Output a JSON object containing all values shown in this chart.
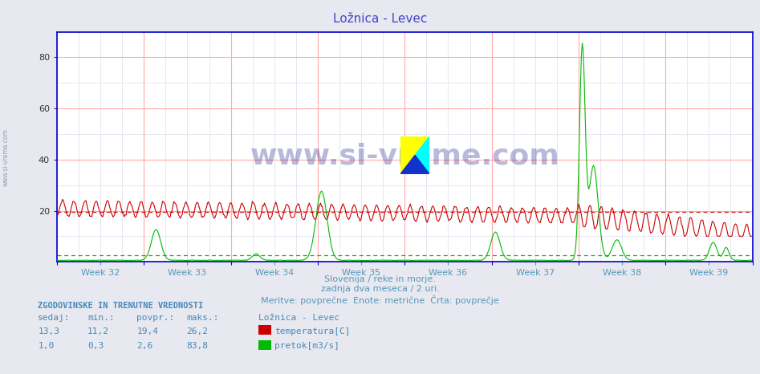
{
  "title": "Ložnica - Levec",
  "title_color": "#4444cc",
  "bg_color": "#e8e8f0",
  "plot_bg_color": "#ffffff",
  "grid_color_major": "#ffaaaa",
  "grid_color_minor": "#ddddee",
  "ylim": [
    0,
    90
  ],
  "yticks": [
    20,
    40,
    60,
    80
  ],
  "xlabel_text1": "Slovenija / reke in morje.",
  "xlabel_text2": "zadnja dva meseca / 2 uri.",
  "xlabel_text3": "Meritve: povprečne  Enote: metrične  Črta: povprečje",
  "xlabel_color": "#5599bb",
  "week_labels": [
    "Week 32",
    "Week 33",
    "Week 34",
    "Week 35",
    "Week 36",
    "Week 37",
    "Week 38",
    "Week 39"
  ],
  "temp_color": "#cc0000",
  "flow_color": "#00bb00",
  "avg_temp_color": "#cc0000",
  "avg_flow_color": "#00aa00",
  "watermark_text": "www.si-vreme.com",
  "watermark_color": "#1a1a8c",
  "watermark_alpha": 0.3,
  "info_header": "ZGODOVINSKE IN TRENUTNE VREDNOSTI",
  "info_color": "#4488bb",
  "col_sedaj": "sedaj:",
  "col_min": "min.:",
  "col_povpr": "povpr.:",
  "col_maks": "maks.:",
  "col_station": "Ložnica - Levec",
  "temp_sedaj": "13,3",
  "temp_min": "11,2",
  "temp_povpr": "19,4",
  "temp_maks": "26,2",
  "temp_label": "temperatura[C]",
  "flow_sedaj": "1,0",
  "flow_min": "0,3",
  "flow_povpr": "2,6",
  "flow_maks": "83,8",
  "flow_label": "pretok[m3/s]",
  "n_points": 744,
  "avg_temp": 19.4,
  "avg_flow": 2.6,
  "spine_color": "#0000cc",
  "axis_color": "#0000cc"
}
